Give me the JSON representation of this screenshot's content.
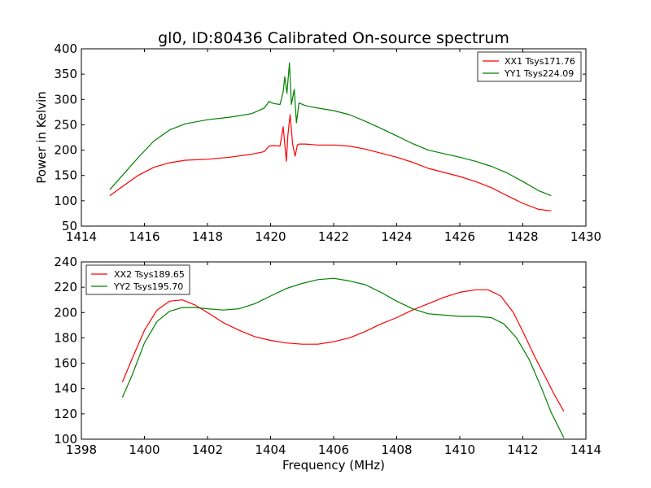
{
  "figure": {
    "title": "gl0, ID:80436 Calibrated On-source spectrum",
    "xlabel": "Frequency (MHz)",
    "ylabel": "Power in Kelvin"
  },
  "chart_data": [
    {
      "type": "line",
      "xlim": [
        1414,
        1430
      ],
      "ylim": [
        50,
        400
      ],
      "xticks": [
        1414,
        1416,
        1418,
        1420,
        1422,
        1424,
        1426,
        1428,
        1430
      ],
      "yticks": [
        50,
        100,
        150,
        200,
        250,
        300,
        350,
        400
      ],
      "legend_position": "top-right",
      "grid": false,
      "series": [
        {
          "name": "XX1 Tsys171.76",
          "color": "#ff0000",
          "x": [
            1414.9,
            1415.3,
            1415.8,
            1416.3,
            1416.8,
            1417.3,
            1418.0,
            1418.7,
            1419.4,
            1419.8,
            1419.95,
            1420.1,
            1420.3,
            1420.4,
            1420.5,
            1420.55,
            1420.62,
            1420.7,
            1420.78,
            1420.85,
            1420.9,
            1421.1,
            1421.5,
            1422.0,
            1422.5,
            1423.0,
            1423.5,
            1424.0,
            1424.5,
            1425.0,
            1425.5,
            1426.0,
            1426.5,
            1427.0,
            1427.5,
            1428.0,
            1428.5,
            1428.9
          ],
          "y": [
            110,
            128,
            150,
            166,
            175,
            180,
            182,
            186,
            192,
            197,
            208,
            209,
            208,
            246,
            178,
            230,
            270,
            212,
            188,
            210,
            212,
            212,
            210,
            210,
            208,
            202,
            194,
            186,
            176,
            164,
            156,
            148,
            138,
            126,
            110,
            95,
            83,
            80
          ]
        },
        {
          "name": "YY1 Tsys224.09",
          "color": "#008000",
          "x": [
            1414.9,
            1415.3,
            1415.8,
            1416.3,
            1416.8,
            1417.3,
            1418.0,
            1418.7,
            1419.4,
            1419.8,
            1419.95,
            1420.1,
            1420.3,
            1420.4,
            1420.45,
            1420.52,
            1420.6,
            1420.66,
            1420.75,
            1420.82,
            1420.9,
            1421.1,
            1421.5,
            1422.0,
            1422.5,
            1423.0,
            1423.5,
            1424.0,
            1424.5,
            1425.0,
            1425.5,
            1426.0,
            1426.5,
            1427.0,
            1427.5,
            1428.0,
            1428.5,
            1428.9
          ],
          "y": [
            122,
            150,
            185,
            218,
            240,
            252,
            260,
            265,
            272,
            283,
            296,
            292,
            290,
            315,
            345,
            312,
            372,
            290,
            320,
            254,
            293,
            288,
            283,
            278,
            270,
            257,
            243,
            228,
            213,
            200,
            193,
            186,
            178,
            168,
            155,
            138,
            120,
            110
          ]
        }
      ]
    },
    {
      "type": "line",
      "xlim": [
        1398,
        1414
      ],
      "ylim": [
        100,
        240
      ],
      "xticks": [
        1398,
        1400,
        1402,
        1404,
        1406,
        1408,
        1410,
        1412,
        1414
      ],
      "yticks": [
        100,
        120,
        140,
        160,
        180,
        200,
        220,
        240
      ],
      "legend_position": "top-left",
      "grid": false,
      "series": [
        {
          "name": "XX2 Tsys189.65",
          "color": "#ff0000",
          "x": [
            1399.3,
            1399.6,
            1400.0,
            1400.4,
            1400.8,
            1401.2,
            1401.6,
            1402.0,
            1402.5,
            1403.0,
            1403.5,
            1404.0,
            1404.5,
            1405.0,
            1405.5,
            1406.0,
            1406.5,
            1407.0,
            1407.5,
            1408.0,
            1408.5,
            1409.0,
            1409.5,
            1410.0,
            1410.5,
            1410.9,
            1411.3,
            1411.7,
            1412.0,
            1412.4,
            1412.8,
            1413.0,
            1413.3
          ],
          "y": [
            145,
            163,
            186,
            202,
            209,
            210,
            206,
            200,
            192,
            186,
            181,
            178,
            176,
            175,
            175,
            177,
            180,
            185,
            191,
            196,
            202,
            207,
            212,
            216,
            218,
            218,
            213,
            200,
            185,
            164,
            145,
            135,
            122
          ]
        },
        {
          "name": "YY2 Tsys195.70",
          "color": "#008000",
          "x": [
            1399.3,
            1399.6,
            1400.0,
            1400.4,
            1400.8,
            1401.2,
            1401.6,
            1402.0,
            1402.5,
            1403.0,
            1403.5,
            1404.0,
            1404.5,
            1405.0,
            1405.5,
            1406.0,
            1406.5,
            1407.0,
            1407.5,
            1408.0,
            1408.5,
            1409.0,
            1409.5,
            1410.0,
            1410.5,
            1411.0,
            1411.4,
            1411.8,
            1412.2,
            1412.6,
            1412.9,
            1413.3
          ],
          "y": [
            133,
            150,
            176,
            193,
            201,
            204,
            204,
            203,
            202,
            203,
            207,
            213,
            219,
            223,
            226,
            227,
            225,
            222,
            216,
            209,
            203,
            199,
            198,
            197,
            197,
            196,
            191,
            180,
            163,
            140,
            121,
            101
          ]
        }
      ]
    }
  ]
}
